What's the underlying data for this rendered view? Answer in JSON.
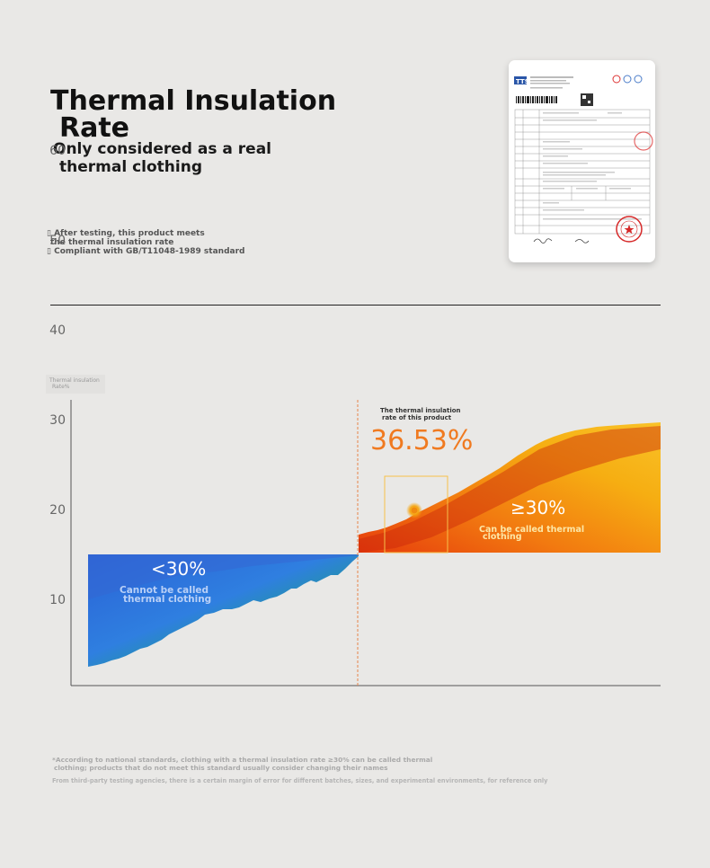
{
  "header": {
    "title_line1": "Thermal Insulation",
    "title_line2": "Rate",
    "subtitle_line1": "Only considered as a real",
    "subtitle_line2": "thermal clothing",
    "note1_line1": "After testing, this product meets",
    "note1_line2": "the thermal insulation rate",
    "note2": "Compliant with GB/T11048-1989 standard"
  },
  "certificate": {
    "logo": "TTS"
  },
  "chart_data": {
    "type": "area",
    "ylabel_line1": "Thermal insulation",
    "ylabel_line2": "Rate%",
    "yticks": [
      10,
      20,
      30,
      40,
      50,
      60
    ],
    "ylim": [
      0,
      65
    ],
    "threshold": 30,
    "product_value_label": "36.53%",
    "product_caption_line1": "The thermal insulation",
    "product_caption_line2": "rate of this product",
    "low_region": {
      "label": "<30%",
      "caption_line1": "Cannot be called",
      "caption_line2": "thermal clothing",
      "color": "#2f6fd8"
    },
    "high_region": {
      "label": "≥30%",
      "caption_line1": "Can be called thermal",
      "caption_line2": "clothing",
      "color": "#f5a40f"
    }
  },
  "footer": {
    "note_line1": "*According to national standards, clothing with a thermal insulation rate ≥30% can be called thermal",
    "note_line2": "clothing; products that do not meet this standard usually consider changing their names",
    "disclaimer": "From third-party testing agencies, there is a certain margin of error for different batches, sizes, and experimental environments, for reference only"
  }
}
